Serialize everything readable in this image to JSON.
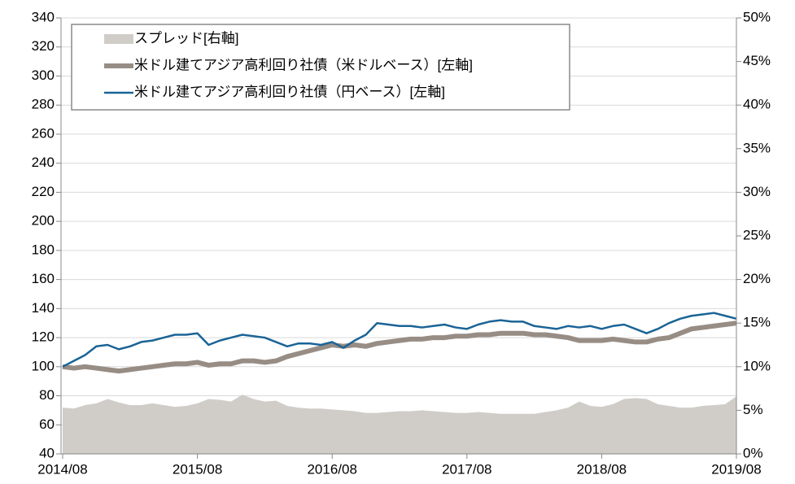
{
  "chart_data": {
    "type": "line",
    "categories": [
      "2014/08",
      null,
      null,
      null,
      null,
      null,
      null,
      null,
      null,
      null,
      null,
      null,
      "2015/08",
      null,
      null,
      null,
      null,
      null,
      null,
      null,
      null,
      null,
      null,
      null,
      "2016/08",
      null,
      null,
      null,
      null,
      null,
      null,
      null,
      null,
      null,
      null,
      null,
      "2017/08",
      null,
      null,
      null,
      null,
      null,
      null,
      null,
      null,
      null,
      null,
      null,
      "2018/08",
      null,
      null,
      null,
      null,
      null,
      null,
      null,
      null,
      null,
      null,
      null,
      "2019/08"
    ],
    "series": [
      {
        "name": "スプレッド[右軸]",
        "type": "area",
        "axis": "y2",
        "color": "#d0cdc9",
        "values": [
          5.3,
          5.2,
          5.6,
          5.8,
          6.3,
          5.9,
          5.6,
          5.6,
          5.8,
          5.6,
          5.4,
          5.5,
          5.8,
          6.3,
          6.2,
          6.0,
          6.8,
          6.3,
          6.0,
          6.1,
          5.5,
          5.3,
          5.2,
          5.2,
          5.1,
          5.0,
          4.9,
          4.7,
          4.7,
          4.8,
          4.9,
          4.9,
          5.0,
          4.9,
          4.8,
          4.7,
          4.7,
          4.8,
          4.7,
          4.6,
          4.6,
          4.6,
          4.6,
          4.8,
          5.0,
          5.3,
          6.0,
          5.5,
          5.4,
          5.7,
          6.3,
          6.4,
          6.3,
          5.7,
          5.5,
          5.3,
          5.3,
          5.5,
          5.6,
          5.7,
          6.6
        ]
      },
      {
        "name": "米ドル建てアジア高利回り社債（米ドルベース）[左軸]",
        "type": "line",
        "color": "#978d85",
        "values": [
          100,
          99,
          100,
          99,
          98,
          97,
          98,
          99,
          100,
          101,
          102,
          102,
          103,
          101,
          102,
          102,
          104,
          104,
          103,
          104,
          107,
          109,
          111,
          113,
          115,
          114,
          115,
          114,
          116,
          117,
          118,
          119,
          119,
          120,
          120,
          121,
          121,
          122,
          122,
          123,
          123,
          123,
          122,
          122,
          121,
          120,
          118,
          118,
          118,
          119,
          118,
          117,
          117,
          119,
          120,
          123,
          126,
          127,
          128,
          129,
          130
        ]
      },
      {
        "name": "米ドル建てアジア高利回り社債（円ベース）[左軸]",
        "type": "line",
        "color": "#1a6496",
        "values": [
          100,
          104,
          108,
          114,
          115,
          112,
          114,
          117,
          118,
          120,
          122,
          122,
          123,
          115,
          118,
          120,
          122,
          121,
          120,
          117,
          114,
          116,
          116,
          115,
          117,
          113,
          118,
          122,
          130,
          129,
          128,
          128,
          127,
          128,
          129,
          127,
          126,
          129,
          131,
          132,
          131,
          131,
          128,
          127,
          126,
          128,
          127,
          128,
          126,
          128,
          129,
          126,
          123,
          126,
          130,
          133,
          135,
          136,
          137,
          135,
          133
        ]
      }
    ],
    "ylim": [
      40,
      340
    ],
    "yticks": [
      40,
      60,
      80,
      100,
      120,
      140,
      160,
      180,
      200,
      220,
      240,
      260,
      280,
      300,
      320,
      340
    ],
    "y2lim": [
      0,
      50
    ],
    "y2ticks": [
      {
        "value": 0,
        "label": "0%"
      },
      {
        "value": 5,
        "label": "5%"
      },
      {
        "value": 10,
        "label": "10%"
      },
      {
        "value": 15,
        "label": "15%"
      },
      {
        "value": 20,
        "label": "20%"
      },
      {
        "value": 25,
        "label": "25%"
      },
      {
        "value": 30,
        "label": "30%"
      },
      {
        "value": 35,
        "label": "35%"
      },
      {
        "value": 40,
        "label": "40%"
      },
      {
        "value": 45,
        "label": "45%"
      },
      {
        "value": 50,
        "label": "50%"
      }
    ],
    "grid": true,
    "legend": "upper left"
  }
}
